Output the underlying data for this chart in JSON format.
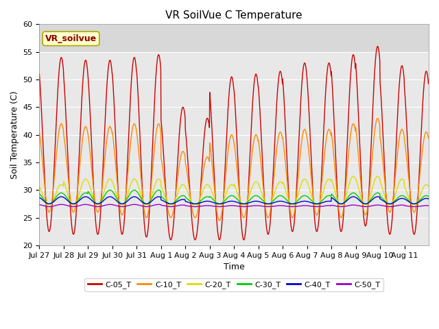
{
  "title": "VR SoilVue C Temperature",
  "ylabel": "Soil Temperature (C)",
  "xlabel": "Time",
  "ylim": [
    20,
    60
  ],
  "annotation": "VR_soilvue",
  "plot_bg_color": "#e8e8e8",
  "fig_bg_color": "#ffffff",
  "series_names": [
    "C-05_T",
    "C-10_T",
    "C-20_T",
    "C-30_T",
    "C-40_T",
    "C-50_T"
  ],
  "series_colors": [
    "#cc0000",
    "#ff8800",
    "#dddd00",
    "#00cc00",
    "#0000cc",
    "#9900cc"
  ],
  "xtick_labels": [
    "Jul 27",
    "Jul 28",
    "Jul 29",
    "Jul 30",
    "Jul 31",
    "Aug 1",
    "Aug 2",
    "Aug 3",
    "Aug 4",
    "Aug 5",
    "Aug 6",
    "Aug 7",
    "Aug 8",
    "Aug 9",
    "Aug 10",
    "Aug 11"
  ],
  "num_days": 16,
  "points_per_day": 96,
  "peak_temps": {
    "C-05_T": [
      54,
      53.5,
      53.5,
      54.0,
      54.5,
      45,
      43,
      50.5,
      51,
      51.5,
      53,
      53,
      54.5,
      56,
      52.5,
      51.5
    ],
    "C-10_T": [
      42,
      41.5,
      41.5,
      42,
      42,
      37,
      36,
      40,
      40,
      40.5,
      41,
      41,
      42,
      43,
      41,
      40.5
    ],
    "C-20_T": [
      31,
      32,
      32,
      32,
      32,
      31,
      31,
      31,
      31.5,
      31.5,
      32,
      32,
      32.5,
      32.5,
      32,
      31
    ],
    "C-30_T": [
      29.5,
      29.5,
      30,
      30,
      30,
      29,
      28.8,
      29,
      29,
      29,
      29,
      29,
      29.5,
      29.5,
      29,
      29
    ],
    "C-40_T": [
      28.8,
      28.8,
      28.8,
      28.8,
      28.8,
      28.3,
      28,
      28,
      28,
      28,
      28,
      28,
      28.8,
      28.8,
      28.5,
      28.5
    ],
    "C-50_T": [
      27.4,
      27.4,
      27.4,
      27.4,
      27.4,
      27.3,
      27.2,
      27.2,
      27.2,
      27.2,
      27.2,
      27.2,
      27.3,
      27.3,
      27.3,
      27.2
    ]
  },
  "min_temps": {
    "C-05_T": [
      22.5,
      22,
      22,
      22,
      21.5,
      21,
      21,
      21,
      21,
      22,
      22.5,
      22.5,
      22.5,
      23.5,
      22,
      22
    ],
    "C-10_T": [
      26,
      26,
      26,
      25.5,
      25,
      25,
      25,
      24.5,
      25,
      25,
      25,
      25.5,
      25,
      25.5,
      26,
      26
    ],
    "C-20_T": [
      27,
      27,
      27,
      27,
      27,
      27,
      27,
      27,
      27,
      27,
      27,
      27,
      27,
      27,
      27,
      27
    ],
    "C-30_T": [
      27.5,
      27.5,
      27.5,
      27.5,
      27.5,
      27.5,
      27.5,
      27.5,
      27.5,
      27.5,
      27.5,
      27.5,
      27.5,
      27.5,
      27.5,
      27.5
    ],
    "C-40_T": [
      27.5,
      27.5,
      27.5,
      27.5,
      27.5,
      27.5,
      27.5,
      27.5,
      27.5,
      27.5,
      27.5,
      27.5,
      27.5,
      27.5,
      27.5,
      27.5
    ],
    "C-50_T": [
      27.0,
      27.0,
      27.0,
      27.0,
      27.0,
      27.0,
      27.0,
      27.0,
      27.0,
      27.0,
      27.0,
      27.0,
      27.0,
      27.0,
      27.0,
      27.0
    ]
  },
  "peak_phase": 0.65,
  "linewidth": 1.0,
  "title_fontsize": 11,
  "axis_fontsize": 9,
  "tick_fontsize": 8,
  "legend_fontsize": 8
}
